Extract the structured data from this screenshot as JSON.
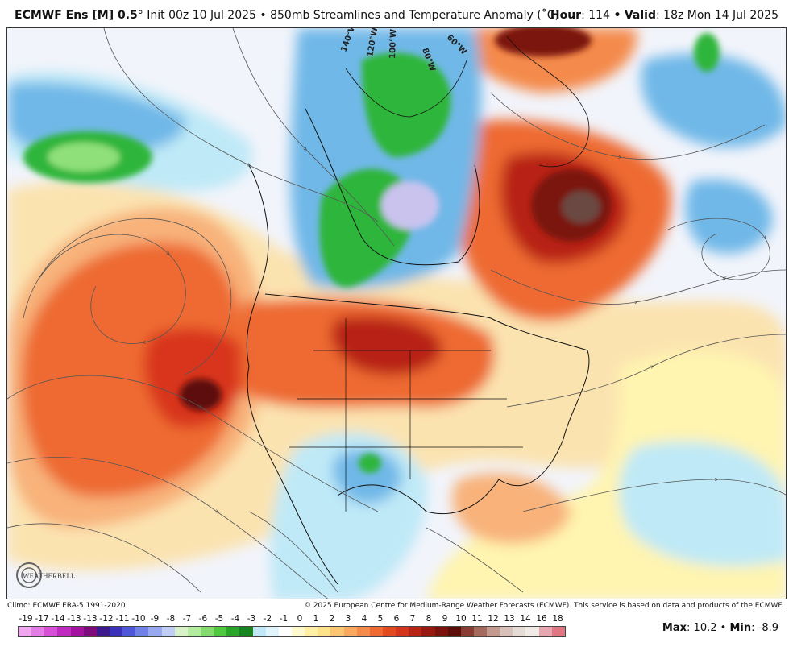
{
  "header": {
    "model": "ECMWF Ens [M] 0.5",
    "model_suffix": "°",
    "init": "Init 00z 10 Jul 2025",
    "separator": "•",
    "field": "850mb Streamlines and Temperature Anomaly (˚C)",
    "hour_label": "Hour",
    "hour_value": "114",
    "valid_label": "Valid",
    "valid_value": "18z Mon 14 Jul 2025"
  },
  "map": {
    "longitude_labels": [
      "140°W",
      "120°W",
      "100°W",
      "80°W",
      "60°W"
    ],
    "logo_text": "WEATHERBELL",
    "colors": {
      "ocean_bg": "#f2f4fb",
      "warm_strong": "#d8351a",
      "warm_mid": "#ee6a32",
      "warm_light": "#f8b27a",
      "warm_pale": "#fbe3b0",
      "yellow": "#fff4b0",
      "cool_light": "#bfe9f7",
      "cool_mid": "#6fb8e8",
      "blue": "#2f7fd6",
      "green": "#2fb53a",
      "green_light": "#8fe07a",
      "lavender": "#c9c3ee",
      "dark_core": "#6a0f0a",
      "brown_core": "#6b4a42"
    }
  },
  "footer": {
    "climo": "Climo: ECMWF ERA-5 1991-2020",
    "copyright": "© 2025 European Centre for Medium-Range Weather Forecasts (ECMWF). This service is based on data and products of the ECMWF."
  },
  "legend": {
    "ticks": [
      "-19",
      "-17",
      "-14",
      "-13",
      "-13",
      "-12",
      "-11",
      "-10",
      "-9",
      "-8",
      "-7",
      "-6",
      "-5",
      "-4",
      "-3",
      "-2",
      "-1",
      "0",
      "1",
      "2",
      "3",
      "4",
      "5",
      "6",
      "7",
      "8",
      "9",
      "10",
      "11",
      "12",
      "13",
      "14",
      "16",
      "18"
    ],
    "colors": [
      "#f3a6f0",
      "#e57be4",
      "#d64fd6",
      "#c02bbf",
      "#a2129f",
      "#7e0b7c",
      "#3d1a8c",
      "#3b30b8",
      "#4d57d8",
      "#6f80e6",
      "#98a9ef",
      "#c0cdf5",
      "#d9f2c9",
      "#b3ec9f",
      "#84dc6e",
      "#4fc73f",
      "#2aa52a",
      "#16841f",
      "#bfe9f7",
      "#dff5fb",
      "#ffffff",
      "#fff9cf",
      "#fff0a6",
      "#fde28c",
      "#fbc574",
      "#f8a95f",
      "#f48a4c",
      "#ee6a32",
      "#e24a22",
      "#d2351a",
      "#b82414",
      "#961a10",
      "#7a130c",
      "#5d0d08",
      "#8a3b32",
      "#a56a5e",
      "#c49a8e",
      "#d8c1b8",
      "#e6dcd6",
      "#f0ebe7",
      "#e8a7b0",
      "#e07683"
    ]
  },
  "stats": {
    "max_label": "Max",
    "max_value": "10.2",
    "min_label": "Min",
    "min_value": "-8.9",
    "separator": "•"
  }
}
